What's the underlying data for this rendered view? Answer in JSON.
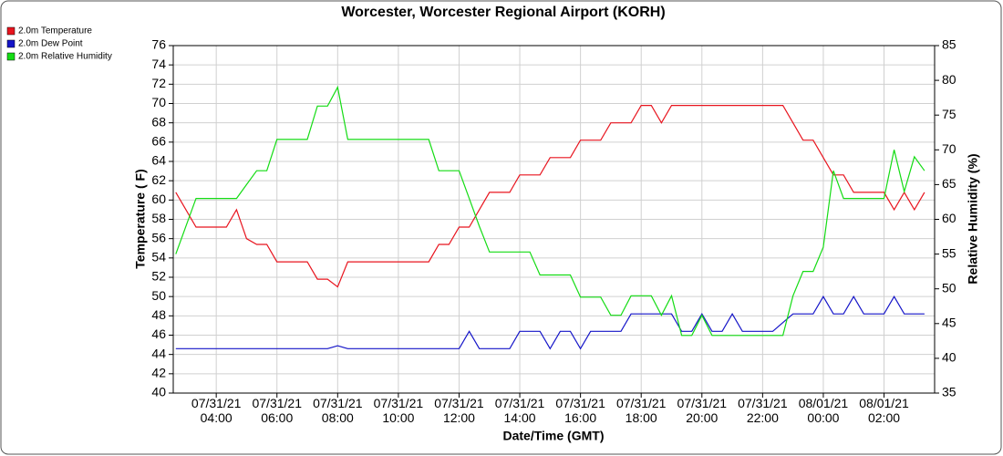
{
  "chart_data": {
    "type": "line",
    "title": "Worcester, Worcester Regional Airport (KORH)",
    "xlabel": "Date/Time (GMT)",
    "ylabel": "Temperature ( F)",
    "y2label": "Relative Humidity (%)",
    "x": [
      "07/31/21 02:40",
      "07/31/21 03:00",
      "07/31/21 03:20",
      "07/31/21 03:40",
      "07/31/21 04:00",
      "07/31/21 04:20",
      "07/31/21 04:40",
      "07/31/21 05:00",
      "07/31/21 05:20",
      "07/31/21 05:40",
      "07/31/21 06:00",
      "07/31/21 06:20",
      "07/31/21 06:40",
      "07/31/21 07:00",
      "07/31/21 07:20",
      "07/31/21 07:40",
      "07/31/21 08:00",
      "07/31/21 08:20",
      "07/31/21 08:40",
      "07/31/21 09:00",
      "07/31/21 09:20",
      "07/31/21 09:40",
      "07/31/21 10:00",
      "07/31/21 10:20",
      "07/31/21 10:40",
      "07/31/21 11:00",
      "07/31/21 11:20",
      "07/31/21 11:40",
      "07/31/21 12:00",
      "07/31/21 12:20",
      "07/31/21 12:40",
      "07/31/21 13:00",
      "07/31/21 13:20",
      "07/31/21 13:40",
      "07/31/21 14:00",
      "07/31/21 14:20",
      "07/31/21 14:40",
      "07/31/21 15:00",
      "07/31/21 15:20",
      "07/31/21 15:40",
      "07/31/21 16:00",
      "07/31/21 16:20",
      "07/31/21 16:40",
      "07/31/21 17:00",
      "07/31/21 17:20",
      "07/31/21 17:40",
      "07/31/21 18:00",
      "07/31/21 18:20",
      "07/31/21 18:40",
      "07/31/21 19:00",
      "07/31/21 19:20",
      "07/31/21 19:40",
      "07/31/21 20:00",
      "07/31/21 20:20",
      "07/31/21 20:40",
      "07/31/21 21:00",
      "07/31/21 21:20",
      "07/31/21 21:40",
      "07/31/21 22:00",
      "07/31/21 22:20",
      "07/31/21 22:40",
      "07/31/21 23:00",
      "07/31/21 23:20",
      "07/31/21 23:40",
      "08/01/21 00:00",
      "08/01/21 00:20",
      "08/01/21 00:40",
      "08/01/21 01:00",
      "08/01/21 01:20",
      "08/01/21 01:40",
      "08/01/21 02:00",
      "08/01/21 02:20",
      "08/01/21 02:40",
      "08/01/21 03:00",
      "08/01/21 03:20"
    ],
    "xlim": [
      "07/31/21 02:35",
      "08/01/21 03:40"
    ],
    "xticks": [
      "07/31/21 04:00",
      "07/31/21 06:00",
      "07/31/21 08:00",
      "07/31/21 10:00",
      "07/31/21 12:00",
      "07/31/21 14:00",
      "07/31/21 16:00",
      "07/31/21 18:00",
      "07/31/21 20:00",
      "07/31/21 22:00",
      "08/01/21 00:00",
      "08/01/21 02:00"
    ],
    "ylim": [
      40,
      76
    ],
    "yticks": [
      40,
      42,
      44,
      46,
      48,
      50,
      52,
      54,
      56,
      58,
      60,
      62,
      64,
      66,
      68,
      70,
      72,
      74,
      76
    ],
    "y2lim": [
      35,
      85
    ],
    "y2ticks": [
      35,
      40,
      45,
      50,
      55,
      60,
      65,
      70,
      75,
      80,
      85
    ],
    "grid": true,
    "legend": "top-left",
    "series": [
      {
        "name": "2.0m Temperature",
        "color": "#e8141e",
        "values": [
          60.8,
          59,
          57.2,
          57.2,
          57.2,
          57.2,
          59,
          56,
          55.4,
          55.4,
          53.6,
          53.6,
          53.6,
          53.6,
          51.8,
          51.8,
          51,
          53.6,
          53.6,
          53.6,
          53.6,
          53.6,
          53.6,
          53.6,
          53.6,
          53.6,
          55.4,
          55.4,
          57.2,
          57.2,
          59,
          60.8,
          60.8,
          60.8,
          62.6,
          62.6,
          62.6,
          64.4,
          64.4,
          64.4,
          66.2,
          66.2,
          66.2,
          68,
          68,
          68,
          69.8,
          69.8,
          68,
          69.8,
          69.8,
          69.8,
          69.8,
          69.8,
          69.8,
          69.8,
          69.8,
          69.8,
          69.8,
          69.8,
          69.8,
          68,
          66.2,
          66.2,
          64.4,
          62.6,
          62.6,
          60.8,
          60.8,
          60.8,
          60.8,
          59,
          60.8,
          59,
          60.8
        ]
      },
      {
        "name": "2.0m Dew Point",
        "color": "#1414c8",
        "values": [
          44.6,
          44.6,
          44.6,
          44.6,
          44.6,
          44.6,
          44.6,
          44.6,
          44.6,
          44.6,
          44.6,
          44.6,
          44.6,
          44.6,
          44.6,
          44.6,
          44.9,
          44.6,
          44.6,
          44.6,
          44.6,
          44.6,
          44.6,
          44.6,
          44.6,
          44.6,
          44.6,
          44.6,
          44.6,
          46.4,
          44.6,
          44.6,
          44.6,
          44.6,
          46.4,
          46.4,
          46.4,
          44.6,
          46.4,
          46.4,
          44.6,
          46.4,
          46.4,
          46.4,
          46.4,
          48.2,
          48.2,
          48.2,
          48.2,
          48.2,
          46.4,
          46.4,
          48.2,
          46.4,
          46.4,
          48.2,
          46.4,
          46.4,
          46.4,
          46.4,
          47.3,
          48.2,
          48.2,
          48.2,
          50,
          48.2,
          48.2,
          50,
          48.2,
          48.2,
          48.2,
          50,
          48.2,
          48.2,
          48.2
        ]
      },
      {
        "name": "2.0m Relative Humidity",
        "color": "#14dc14",
        "axis": "y2",
        "values": [
          55,
          59,
          63,
          63,
          63,
          63,
          63,
          65,
          67,
          67,
          71.5,
          71.5,
          71.5,
          71.5,
          76.3,
          76.3,
          79,
          71.5,
          71.5,
          71.5,
          71.5,
          71.5,
          71.5,
          71.5,
          71.5,
          71.5,
          67,
          67,
          67,
          63,
          59,
          55.3,
          55.3,
          55.3,
          55.3,
          55.3,
          52,
          52,
          52,
          52,
          48.8,
          48.8,
          48.8,
          46.2,
          46.2,
          49,
          49,
          49,
          46.2,
          49,
          43.3,
          43.3,
          46.2,
          43.3,
          43.3,
          43.3,
          43.3,
          43.3,
          43.3,
          43.3,
          43.3,
          49,
          52.5,
          52.5,
          56,
          67,
          63,
          63,
          63,
          63,
          63,
          70,
          64,
          69,
          67
        ]
      }
    ]
  }
}
